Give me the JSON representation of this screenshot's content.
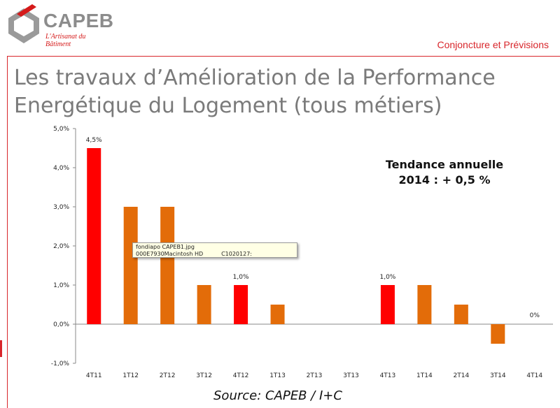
{
  "header": {
    "logo_text": "CAPEB",
    "logo_tagline": "L'Artisanat du Bâtiment",
    "subtitle": "Conjoncture et Prévisions"
  },
  "title_lines": [
    "Les travaux d’Amélioration de la Performance",
    "Energétique du Logement (tous métiers)"
  ],
  "annotation": {
    "line1": "Tendance annuelle",
    "line2": "2014  : + 0,5 %"
  },
  "tooltip": {
    "line1": "fondiapo CAPEB1.jpg",
    "line2a": "000E7930Macintosh HD",
    "line2b": "C1020127:"
  },
  "source": "Source: CAPEB / I+C",
  "colors": {
    "accent_red": "#d8262b",
    "bar_red": "#ff0000",
    "bar_orange": "#e36c09",
    "title_gray": "#7a7a7a"
  },
  "chart_data": {
    "type": "bar",
    "categories": [
      "4T11",
      "1T12",
      "2T12",
      "3T12",
      "4T12",
      "1T13",
      "2T13",
      "3T13",
      "4T13",
      "1T14",
      "2T14",
      "3T14",
      "4T14"
    ],
    "values": [
      4.5,
      3.0,
      3.0,
      1.0,
      1.0,
      0.5,
      0.0,
      0.0,
      1.0,
      1.0,
      0.5,
      -0.5,
      0.0
    ],
    "bar_colors": [
      "red",
      "orange",
      "orange",
      "orange",
      "red",
      "orange",
      "orange",
      "orange",
      "red",
      "orange",
      "orange",
      "orange",
      "red"
    ],
    "data_labels": [
      "4,5%",
      "",
      "",
      "",
      "1,0%",
      "",
      "",
      "",
      "1,0%",
      "",
      "",
      "",
      "0%"
    ],
    "yticks": [
      "-1,0%",
      "0,0%",
      "1,0%",
      "2,0%",
      "3,0%",
      "4,0%",
      "5,0%"
    ],
    "ylim": [
      -1,
      5
    ],
    "grid": false,
    "legend": "none"
  }
}
